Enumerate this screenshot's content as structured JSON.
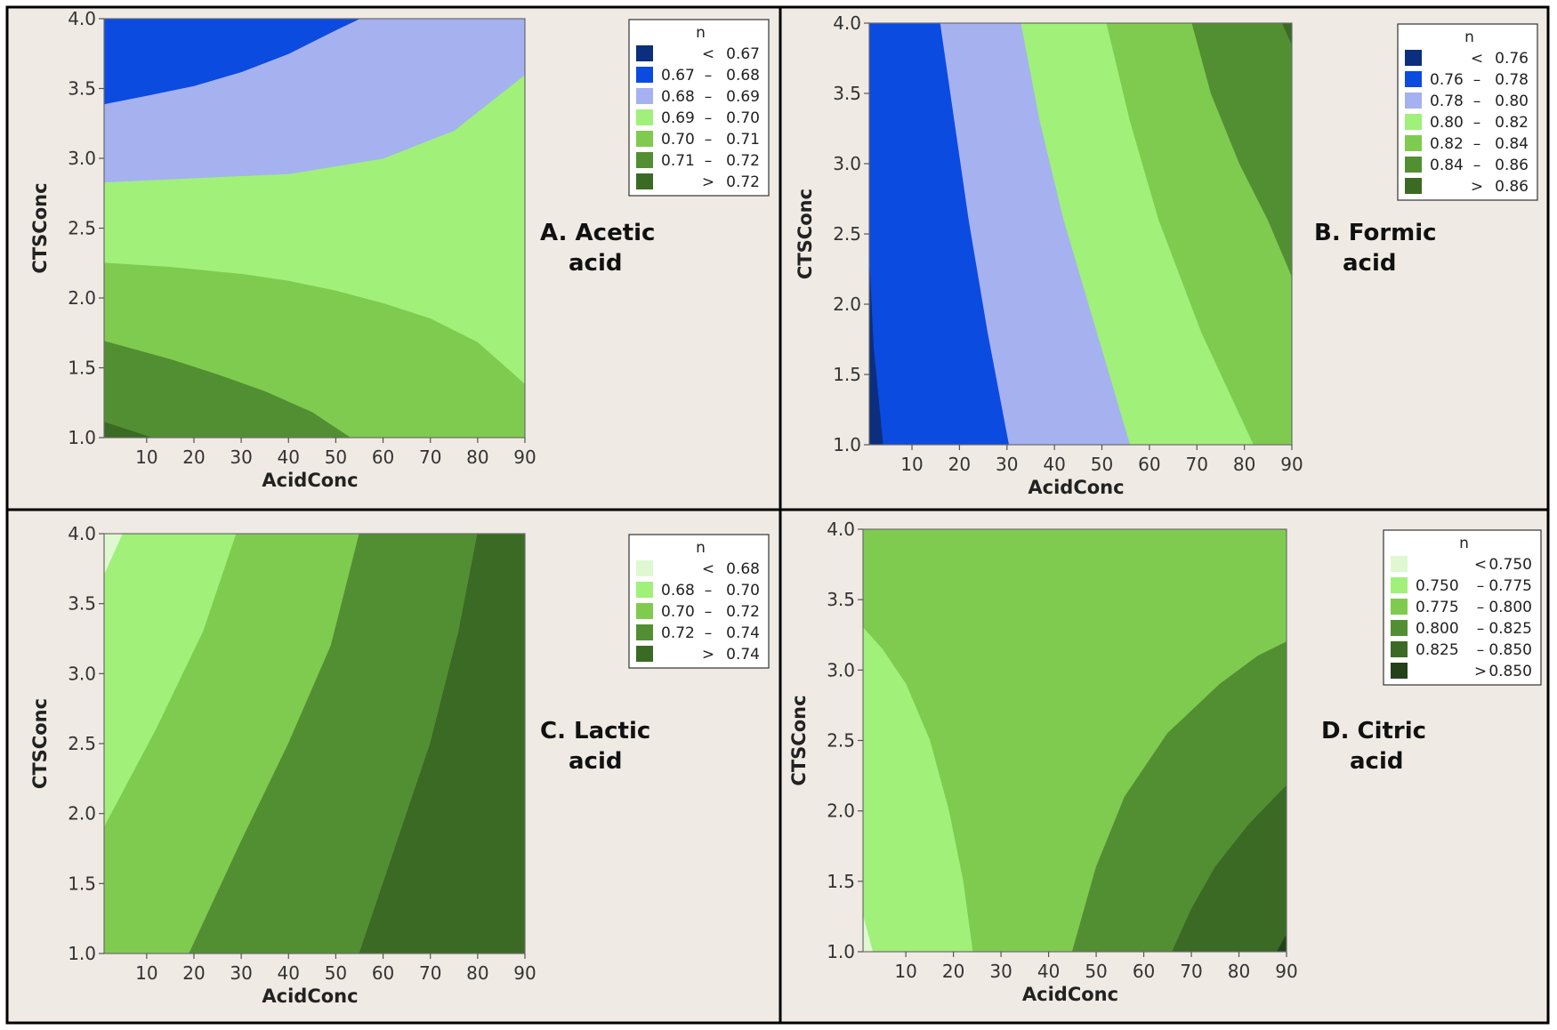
{
  "chart_data": [
    {
      "panel": "A",
      "type": "contour",
      "title_line1": "A. Acetic",
      "title_line2": "acid",
      "xlabel": "AcidConc",
      "ylabel": "CTSConc",
      "xlim": [
        1,
        90
      ],
      "ylim": [
        1.0,
        4.0
      ],
      "x_ticks": [
        "10",
        "20",
        "30",
        "40",
        "50",
        "60",
        "70",
        "80",
        "90"
      ],
      "y_ticks": [
        "1.0",
        "1.5",
        "2.0",
        "2.5",
        "3.0",
        "3.5",
        "4.0"
      ],
      "legend_title": "n",
      "legend": [
        {
          "op": "<",
          "lo": "",
          "hi": "0.67",
          "color": "#0b2e7d"
        },
        {
          "op": "–",
          "lo": "0.67",
          "hi": "0.68",
          "color": "#0b4be0"
        },
        {
          "op": "–",
          "lo": "0.68",
          "hi": "0.69",
          "color": "#a6b1f0"
        },
        {
          "op": "–",
          "lo": "0.69",
          "hi": "0.70",
          "color": "#a0f07a"
        },
        {
          "op": "–",
          "lo": "0.70",
          "hi": "0.71",
          "color": "#7fcb4f"
        },
        {
          "op": "–",
          "lo": "0.71",
          "hi": "0.72",
          "color": "#528f33"
        },
        {
          "op": ">",
          "lo": "",
          "hi": "0.72",
          "color": "#3a6a23"
        }
      ],
      "regions": [
        {
          "band": 3,
          "boundary": [
            [
              1,
              1.0
            ],
            [
              90,
              1.0
            ],
            [
              90,
              4.0
            ],
            [
              1,
              4.0
            ]
          ]
        },
        {
          "band": 2,
          "boundary": [
            [
              1,
              2.83
            ],
            [
              20,
              2.86
            ],
            [
              40,
              2.89
            ],
            [
              60,
              3.0
            ],
            [
              75,
              3.2
            ],
            [
              90,
              3.6
            ],
            [
              90,
              4.0
            ],
            [
              1,
              4.0
            ]
          ]
        },
        {
          "band": 1,
          "boundary": [
            [
              1,
              3.39
            ],
            [
              10,
              3.45
            ],
            [
              20,
              3.52
            ],
            [
              30,
              3.62
            ],
            [
              40,
              3.75
            ],
            [
              50,
              3.92
            ],
            [
              55,
              4.0
            ],
            [
              1,
              4.0
            ]
          ]
        },
        {
          "band": 4,
          "boundary": [
            [
              1,
              1.0
            ],
            [
              90,
              1.0
            ],
            [
              90,
              1.38
            ],
            [
              80,
              1.68
            ],
            [
              70,
              1.85
            ],
            [
              60,
              1.96
            ],
            [
              50,
              2.05
            ],
            [
              40,
              2.12
            ],
            [
              30,
              2.17
            ],
            [
              15,
              2.22
            ],
            [
              1,
              2.25
            ]
          ]
        },
        {
          "band": 5,
          "boundary": [
            [
              1,
              1.0
            ],
            [
              53,
              1.0
            ],
            [
              45,
              1.18
            ],
            [
              35,
              1.33
            ],
            [
              25,
              1.45
            ],
            [
              15,
              1.56
            ],
            [
              1,
              1.69
            ]
          ]
        },
        {
          "band": 6,
          "boundary": [
            [
              1,
              1.0
            ],
            [
              11,
              1.0
            ],
            [
              1,
              1.11
            ]
          ]
        }
      ]
    },
    {
      "panel": "B",
      "type": "contour",
      "title_line1": "B. Formic",
      "title_line2": "acid",
      "xlabel": "AcidConc",
      "ylabel": "CTSConc",
      "xlim": [
        1,
        90
      ],
      "ylim": [
        1.0,
        4.0
      ],
      "x_ticks": [
        "10",
        "20",
        "30",
        "40",
        "50",
        "60",
        "70",
        "80",
        "90"
      ],
      "y_ticks": [
        "1.0",
        "1.5",
        "2.0",
        "2.5",
        "3.0",
        "3.5",
        "4.0"
      ],
      "legend_title": "n",
      "legend": [
        {
          "op": "<",
          "lo": "",
          "hi": "0.76",
          "color": "#0b2e7d"
        },
        {
          "op": "–",
          "lo": "0.76",
          "hi": "0.78",
          "color": "#0b4be0"
        },
        {
          "op": "–",
          "lo": "0.78",
          "hi": "0.80",
          "color": "#a6b1f0"
        },
        {
          "op": "–",
          "lo": "0.80",
          "hi": "0.82",
          "color": "#a0f07a"
        },
        {
          "op": "–",
          "lo": "0.82",
          "hi": "0.84",
          "color": "#7fcb4f"
        },
        {
          "op": "–",
          "lo": "0.84",
          "hi": "0.86",
          "color": "#528f33"
        },
        {
          "op": ">",
          "lo": "",
          "hi": "0.86",
          "color": "#3a6a23"
        }
      ],
      "regions": [
        {
          "band": 0,
          "boundary": [
            [
              1,
              1.0
            ],
            [
              90,
              1.0
            ],
            [
              90,
              4.0
            ],
            [
              1,
              4.0
            ]
          ]
        },
        {
          "band": 1,
          "boundary": [
            [
              4,
              1.0
            ],
            [
              90,
              1.0
            ],
            [
              90,
              4.0
            ],
            [
              1,
              4.0
            ],
            [
              1,
              2.4
            ],
            [
              2,
              1.7
            ]
          ]
        },
        {
          "band": 2,
          "boundary": [
            [
              30.5,
              1.0
            ],
            [
              90,
              1.0
            ],
            [
              90,
              4.0
            ],
            [
              16,
              4.0
            ],
            [
              19,
              3.3
            ],
            [
              22,
              2.6
            ],
            [
              26,
              1.8
            ]
          ]
        },
        {
          "band": 3,
          "boundary": [
            [
              56,
              1.0
            ],
            [
              90,
              1.0
            ],
            [
              90,
              4.0
            ],
            [
              33,
              4.0
            ],
            [
              37,
              3.3
            ],
            [
              42,
              2.6
            ],
            [
              49,
              1.8
            ]
          ]
        },
        {
          "band": 4,
          "boundary": [
            [
              82,
              1.0
            ],
            [
              90,
              1.0
            ],
            [
              90,
              4.0
            ],
            [
              51,
              4.0
            ],
            [
              56,
              3.3
            ],
            [
              62,
              2.6
            ],
            [
              71,
              1.8
            ]
          ]
        },
        {
          "band": 5,
          "boundary": [
            [
              90,
              2.2
            ],
            [
              90,
              4.0
            ],
            [
              69,
              4.0
            ],
            [
              73,
              3.5
            ],
            [
              79,
              3.0
            ],
            [
              85,
              2.6
            ]
          ]
        },
        {
          "band": 6,
          "boundary": [
            [
              88,
              4.0
            ],
            [
              90,
              4.0
            ],
            [
              90,
              3.85
            ]
          ]
        }
      ]
    },
    {
      "panel": "C",
      "type": "contour",
      "title_line1": "C. Lactic",
      "title_line2": "acid",
      "xlabel": "AcidConc",
      "ylabel": "CTSConc",
      "xlim": [
        1,
        90
      ],
      "ylim": [
        1.0,
        4.0
      ],
      "x_ticks": [
        "10",
        "20",
        "30",
        "40",
        "50",
        "60",
        "70",
        "80",
        "90"
      ],
      "y_ticks": [
        "1.0",
        "1.5",
        "2.0",
        "2.5",
        "3.0",
        "3.5",
        "4.0"
      ],
      "legend_title": "n",
      "legend": [
        {
          "op": "<",
          "lo": "",
          "hi": "0.68",
          "color": "#dff8d2"
        },
        {
          "op": "–",
          "lo": "0.68",
          "hi": "0.70",
          "color": "#a0f07a"
        },
        {
          "op": "–",
          "lo": "0.70",
          "hi": "0.72",
          "color": "#7fcb4f"
        },
        {
          "op": "–",
          "lo": "0.72",
          "hi": "0.74",
          "color": "#528f33"
        },
        {
          "op": ">",
          "lo": "",
          "hi": "0.74",
          "color": "#3a6a23"
        }
      ],
      "regions": [
        {
          "band": 0,
          "boundary": [
            [
              1,
              1.0
            ],
            [
              90,
              1.0
            ],
            [
              90,
              4.0
            ],
            [
              1,
              4.0
            ]
          ]
        },
        {
          "band": 1,
          "boundary": [
            [
              1,
              1.0
            ],
            [
              90,
              1.0
            ],
            [
              90,
              4.0
            ],
            [
              5,
              4.0
            ],
            [
              3,
              3.85
            ],
            [
              1,
              3.7
            ]
          ]
        },
        {
          "band": 2,
          "boundary": [
            [
              1,
              1.0
            ],
            [
              90,
              1.0
            ],
            [
              90,
              4.0
            ],
            [
              29,
              4.0
            ],
            [
              22,
              3.3
            ],
            [
              12,
              2.6
            ],
            [
              1,
              1.9
            ]
          ]
        },
        {
          "band": 3,
          "boundary": [
            [
              19,
              1.0
            ],
            [
              90,
              1.0
            ],
            [
              90,
              4.0
            ],
            [
              55,
              4.0
            ],
            [
              49,
              3.2
            ],
            [
              40,
              2.5
            ],
            [
              30,
              1.8
            ]
          ]
        },
        {
          "band": 4,
          "boundary": [
            [
              55,
              1.0
            ],
            [
              90,
              1.0
            ],
            [
              90,
              4.0
            ],
            [
              80,
              4.0
            ],
            [
              76,
              3.3
            ],
            [
              70,
              2.5
            ],
            [
              62,
              1.7
            ]
          ]
        }
      ]
    },
    {
      "panel": "D",
      "type": "contour",
      "title_line1": "D. Citric",
      "title_line2": "acid",
      "xlabel": "AcidConc",
      "ylabel": "CTSConc",
      "xlim": [
        1,
        90
      ],
      "ylim": [
        1.0,
        4.0
      ],
      "x_ticks": [
        "10",
        "20",
        "30",
        "40",
        "50",
        "60",
        "70",
        "80",
        "90"
      ],
      "y_ticks": [
        "1.0",
        "1.5",
        "2.0",
        "2.5",
        "3.0",
        "3.5",
        "4.0"
      ],
      "legend_title": "n",
      "legend": [
        {
          "op": "<",
          "lo": "",
          "hi": "0.750",
          "color": "#dff8d2"
        },
        {
          "op": "–",
          "lo": "0.750",
          "hi": "0.775",
          "color": "#a0f07a"
        },
        {
          "op": "–",
          "lo": "0.775",
          "hi": "0.800",
          "color": "#7fcb4f"
        },
        {
          "op": "–",
          "lo": "0.800",
          "hi": "0.825",
          "color": "#528f33"
        },
        {
          "op": "–",
          "lo": "0.825",
          "hi": "0.850",
          "color": "#3a6a23"
        },
        {
          "op": ">",
          "lo": "",
          "hi": "0.850",
          "color": "#23421a"
        }
      ],
      "regions": [
        {
          "band": 2,
          "boundary": [
            [
              1,
              1.0
            ],
            [
              90,
              1.0
            ],
            [
              90,
              4.0
            ],
            [
              1,
              4.0
            ]
          ]
        },
        {
          "band": 1,
          "boundary": [
            [
              1,
              1.0
            ],
            [
              24,
              1.0
            ],
            [
              22,
              1.5
            ],
            [
              19,
              2.0
            ],
            [
              15,
              2.5
            ],
            [
              10,
              2.9
            ],
            [
              5,
              3.15
            ],
            [
              1,
              3.3
            ]
          ]
        },
        {
          "band": 0,
          "boundary": [
            [
              1,
              1.0
            ],
            [
              3,
              1.0
            ],
            [
              1,
              1.25
            ]
          ]
        },
        {
          "band": 3,
          "boundary": [
            [
              45,
              1.0
            ],
            [
              90,
              1.0
            ],
            [
              90,
              3.2
            ],
            [
              84,
              3.1
            ],
            [
              76,
              2.9
            ],
            [
              65,
              2.55
            ],
            [
              56,
              2.1
            ],
            [
              50,
              1.6
            ]
          ]
        },
        {
          "band": 4,
          "boundary": [
            [
              66,
              1.0
            ],
            [
              90,
              1.0
            ],
            [
              90,
              2.18
            ],
            [
              82,
              1.9
            ],
            [
              75,
              1.6
            ],
            [
              70,
              1.3
            ]
          ]
        },
        {
          "band": 5,
          "boundary": [
            [
              88,
              1.0
            ],
            [
              90,
              1.0
            ],
            [
              90,
              1.12
            ]
          ]
        }
      ]
    }
  ]
}
